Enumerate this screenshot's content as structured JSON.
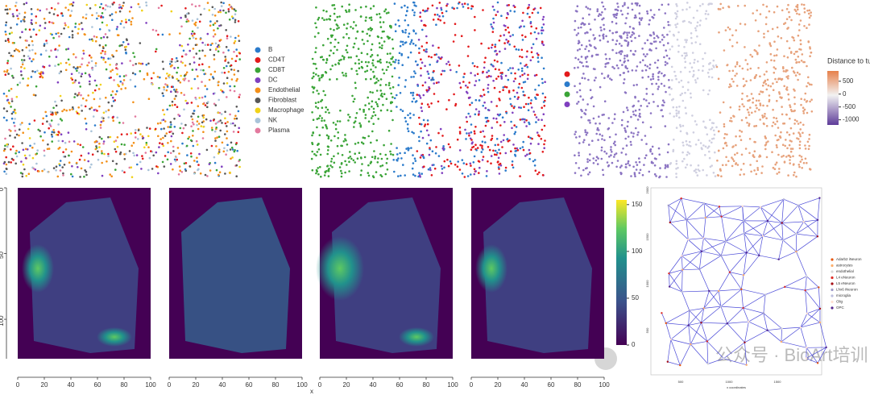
{
  "cell_legend": {
    "items": [
      {
        "label": "B",
        "color": "#2b7bcb"
      },
      {
        "label": "CD4T",
        "color": "#e31a1c"
      },
      {
        "label": "CD8T",
        "color": "#3aa437"
      },
      {
        "label": "DC",
        "color": "#7f3fbf"
      },
      {
        "label": "Endothelial",
        "color": "#f39019"
      },
      {
        "label": "Fibroblast",
        "color": "#575757"
      },
      {
        "label": "Macrophage",
        "color": "#f1d21a"
      },
      {
        "label": "NK",
        "color": "#a9c3d9"
      },
      {
        "label": "Plasma",
        "color": "#e3799e"
      }
    ]
  },
  "distance_colorbar": {
    "title": "Distance to tumor margin",
    "lim": [
      -1200,
      900
    ],
    "ticks": [
      500,
      0,
      -500,
      -1000
    ]
  },
  "heatmaps": {
    "xlim": [
      0,
      100
    ],
    "xticks": [
      0,
      20,
      40,
      60,
      80,
      100
    ],
    "ylim": [
      0,
      130
    ],
    "yticks": [
      0,
      50,
      100
    ],
    "xlabel": "x"
  },
  "count_colorbar": {
    "lim": [
      0,
      155
    ],
    "ticks": [
      0,
      50,
      100,
      150
    ]
  },
  "network": {
    "xticks": [
      "500",
      "1000",
      "1500"
    ],
    "yticks": [
      "500",
      "1000",
      "1500",
      "2000"
    ],
    "xlabel": "x coordinates",
    "legend": [
      {
        "label": "Adarb2 iNeuron",
        "color": "#e6550d"
      },
      {
        "label": "astrocytes",
        "color": "#fdae6b"
      },
      {
        "label": "endothelial",
        "color": "#d9d9d9"
      },
      {
        "label": "L4 eNeuron",
        "color": "#de2d26"
      },
      {
        "label": "L5 eNeuron",
        "color": "#a50f15"
      },
      {
        "label": "Lhx6 iNeuron",
        "color": "#9e9ac8"
      },
      {
        "label": "microglia",
        "color": "#bcbddc"
      },
      {
        "label": "Olig",
        "color": "#fee0d2"
      },
      {
        "label": "OPC",
        "color": "#54278f"
      }
    ]
  },
  "watermark": "公众号 · BioArt培训"
}
